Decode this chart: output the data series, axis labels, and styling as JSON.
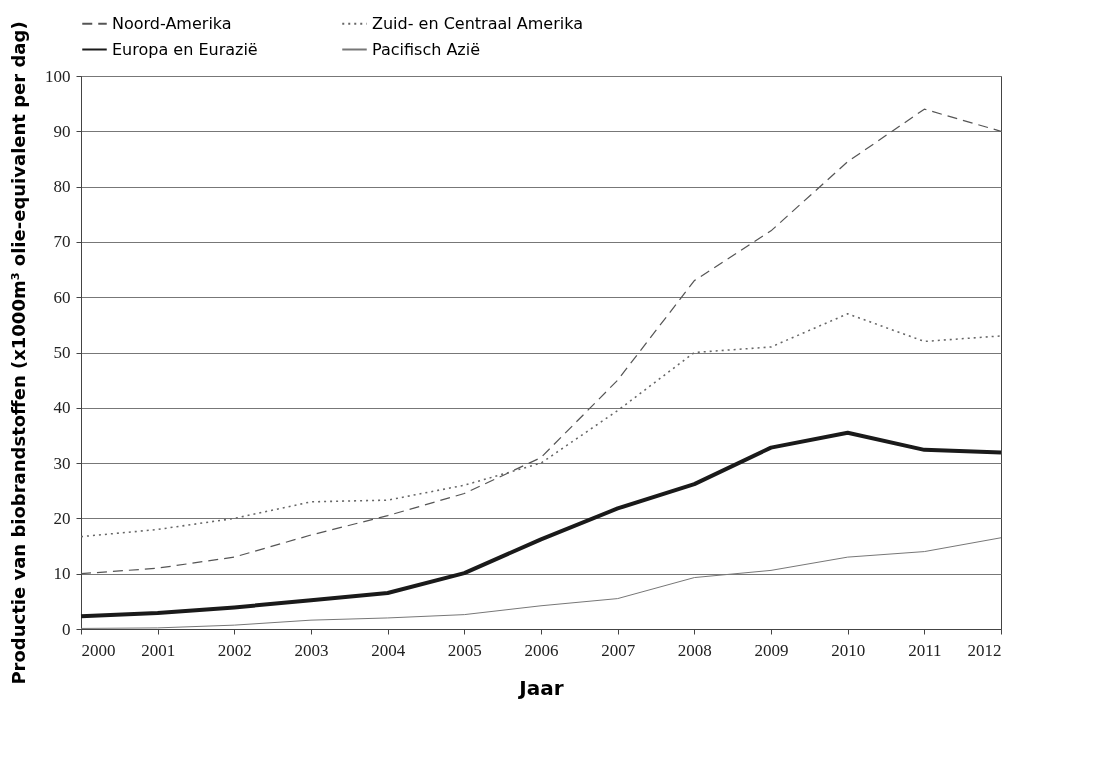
{
  "chart_data": {
    "type": "line",
    "xlabel": "Jaar",
    "ylabel": "Productie van biobrandstoffen (x1000m³ olie-equivalent per dag)",
    "x": [
      2000,
      2001,
      2002,
      2003,
      2004,
      2005,
      2006,
      2007,
      2008,
      2009,
      2010,
      2011,
      2012
    ],
    "xlim": [
      2000,
      2012
    ],
    "xticks": [
      2000,
      2001,
      2002,
      2003,
      2004,
      2005,
      2006,
      2007,
      2008,
      2009,
      2010,
      2011,
      2012
    ],
    "ylim": [
      0,
      100
    ],
    "yticks": [
      0,
      10,
      20,
      30,
      40,
      50,
      60,
      70,
      80,
      90,
      100
    ],
    "grid": "y",
    "legend": "top",
    "marker": "none",
    "series": [
      {
        "name": "Noord-Amerika",
        "color": "#555555",
        "line_style": "dashed",
        "values": [
          10,
          11,
          13,
          17,
          20.5,
          24.5,
          31,
          45,
          63,
          72,
          84.5,
          94,
          90
        ]
      },
      {
        "name": "Zuid- en Centraal Amerika",
        "color": "#666666",
        "line_style": "dotted",
        "values": [
          16.7,
          18,
          20,
          23,
          23.3,
          26,
          30,
          39.5,
          50,
          51,
          57,
          52,
          53
        ]
      },
      {
        "name": "Europa en Eurazië",
        "color": "#1a1a1a",
        "line_style": "solid",
        "values": [
          2.3,
          2.9,
          3.9,
          5.2,
          6.5,
          10.1,
          16.2,
          21.8,
          26.2,
          32.8,
          35.5,
          32.4,
          31.9
        ]
      },
      {
        "name": "Pacifisch Azië",
        "color": "#777777",
        "line_style": "solid",
        "values": [
          0.1,
          0.2,
          0.7,
          1.6,
          2,
          2.6,
          4.2,
          5.5,
          9.3,
          10.6,
          13,
          14,
          16.5
        ]
      }
    ]
  }
}
